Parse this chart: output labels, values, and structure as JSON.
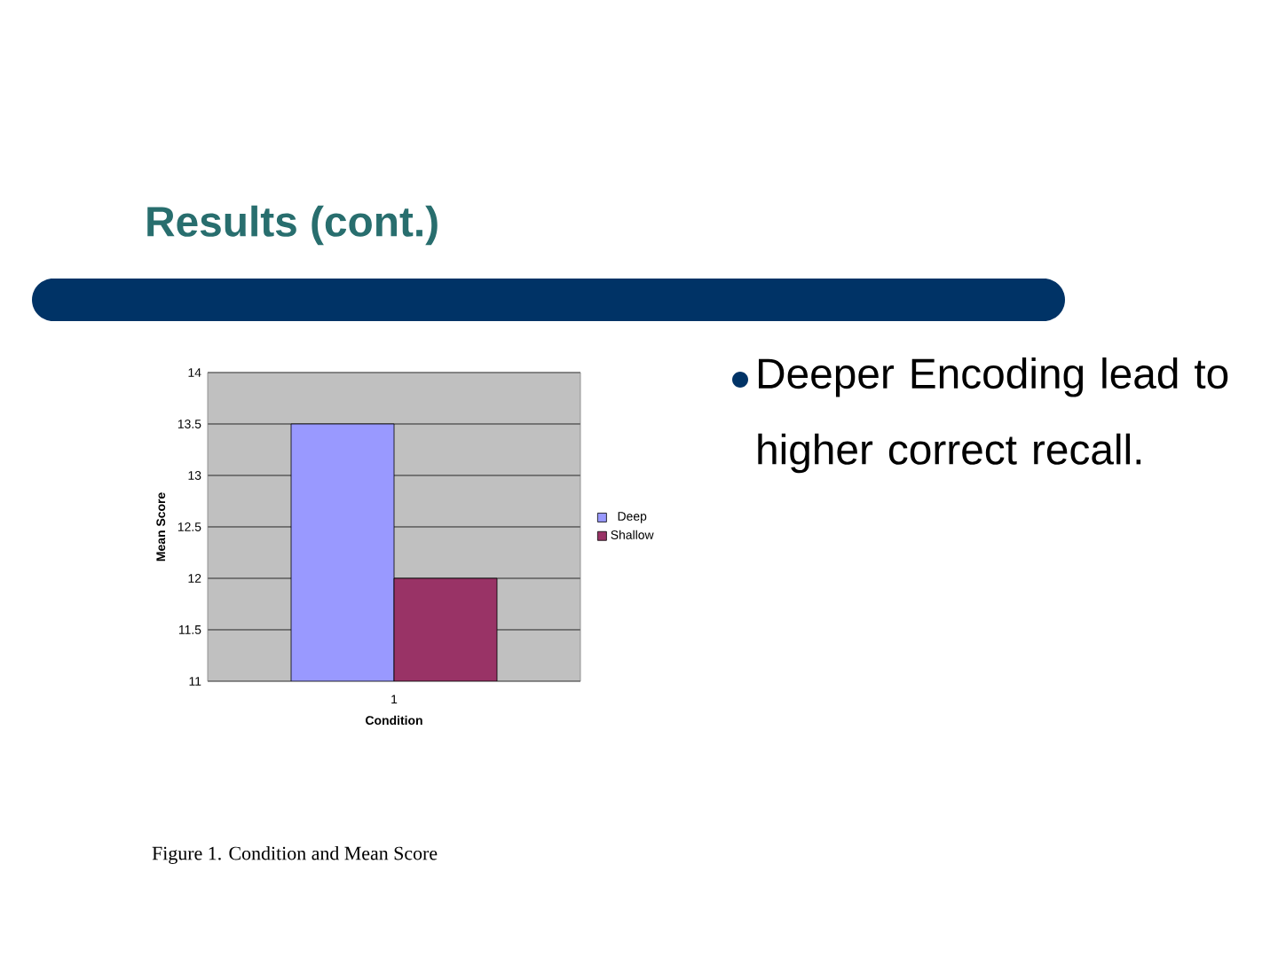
{
  "chart_data": {
    "type": "bar",
    "title": "Results (cont.)",
    "xlabel": "Condition",
    "ylabel": "Mean Score",
    "categories": [
      "1"
    ],
    "series": [
      {
        "name": "Deep",
        "color": "#9999ff",
        "values": [
          13.5
        ]
      },
      {
        "name": "Shallow",
        "color": "#993366",
        "values": [
          12
        ]
      }
    ],
    "ylim": [
      11,
      14
    ],
    "yticks": [
      11,
      11.5,
      12,
      12.5,
      13,
      13.5,
      14
    ],
    "grid": "y",
    "legend": "right",
    "annotations": [
      "Deeper Encoding lead to higher correct recall.",
      "Figure 1.  Condition and Mean Score"
    ]
  }
}
